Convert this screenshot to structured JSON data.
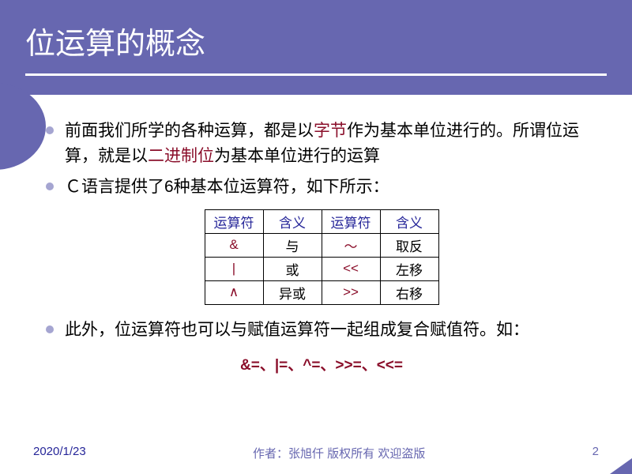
{
  "title": "位运算的概念",
  "bullets": {
    "b1_pre": "前面我们所学的各种运算，都是以",
    "b1_hl1": "字节",
    "b1_mid": "作为基本单位进行的。所谓位运算，就是以",
    "b1_hl2": "二进制位",
    "b1_post": "为基本单位进行的运算",
    "b2": "Ｃ语言提供了6种基本位运算符，如下所示：",
    "b3": "此外，位运算符也可以与赋值运算符一起组成复合赋值符。如："
  },
  "table": {
    "headers": {
      "op": "运算符",
      "mean": "含义"
    },
    "rows": [
      {
        "op1": "&",
        "m1": "与",
        "op2": "～",
        "m2": "取反"
      },
      {
        "op1": "|",
        "m1": "或",
        "op2": "<<",
        "m2": "左移"
      },
      {
        "op1": "∧",
        "m1": "异或",
        "op2": ">>",
        "m2": "右移"
      }
    ],
    "border_color": "#000000",
    "header_color": "#262699",
    "op_color": "#8a0e2a"
  },
  "compound": "&=、|=、^=、>>=、<<=",
  "footer": {
    "date": "2020/1/23",
    "author": "作者：张旭仟 版权所有 欢迎盗版",
    "page": "2"
  },
  "colors": {
    "header_bg": "#6767b0",
    "bullet": "#a5a5d1",
    "highlight": "#8a0e2a"
  }
}
